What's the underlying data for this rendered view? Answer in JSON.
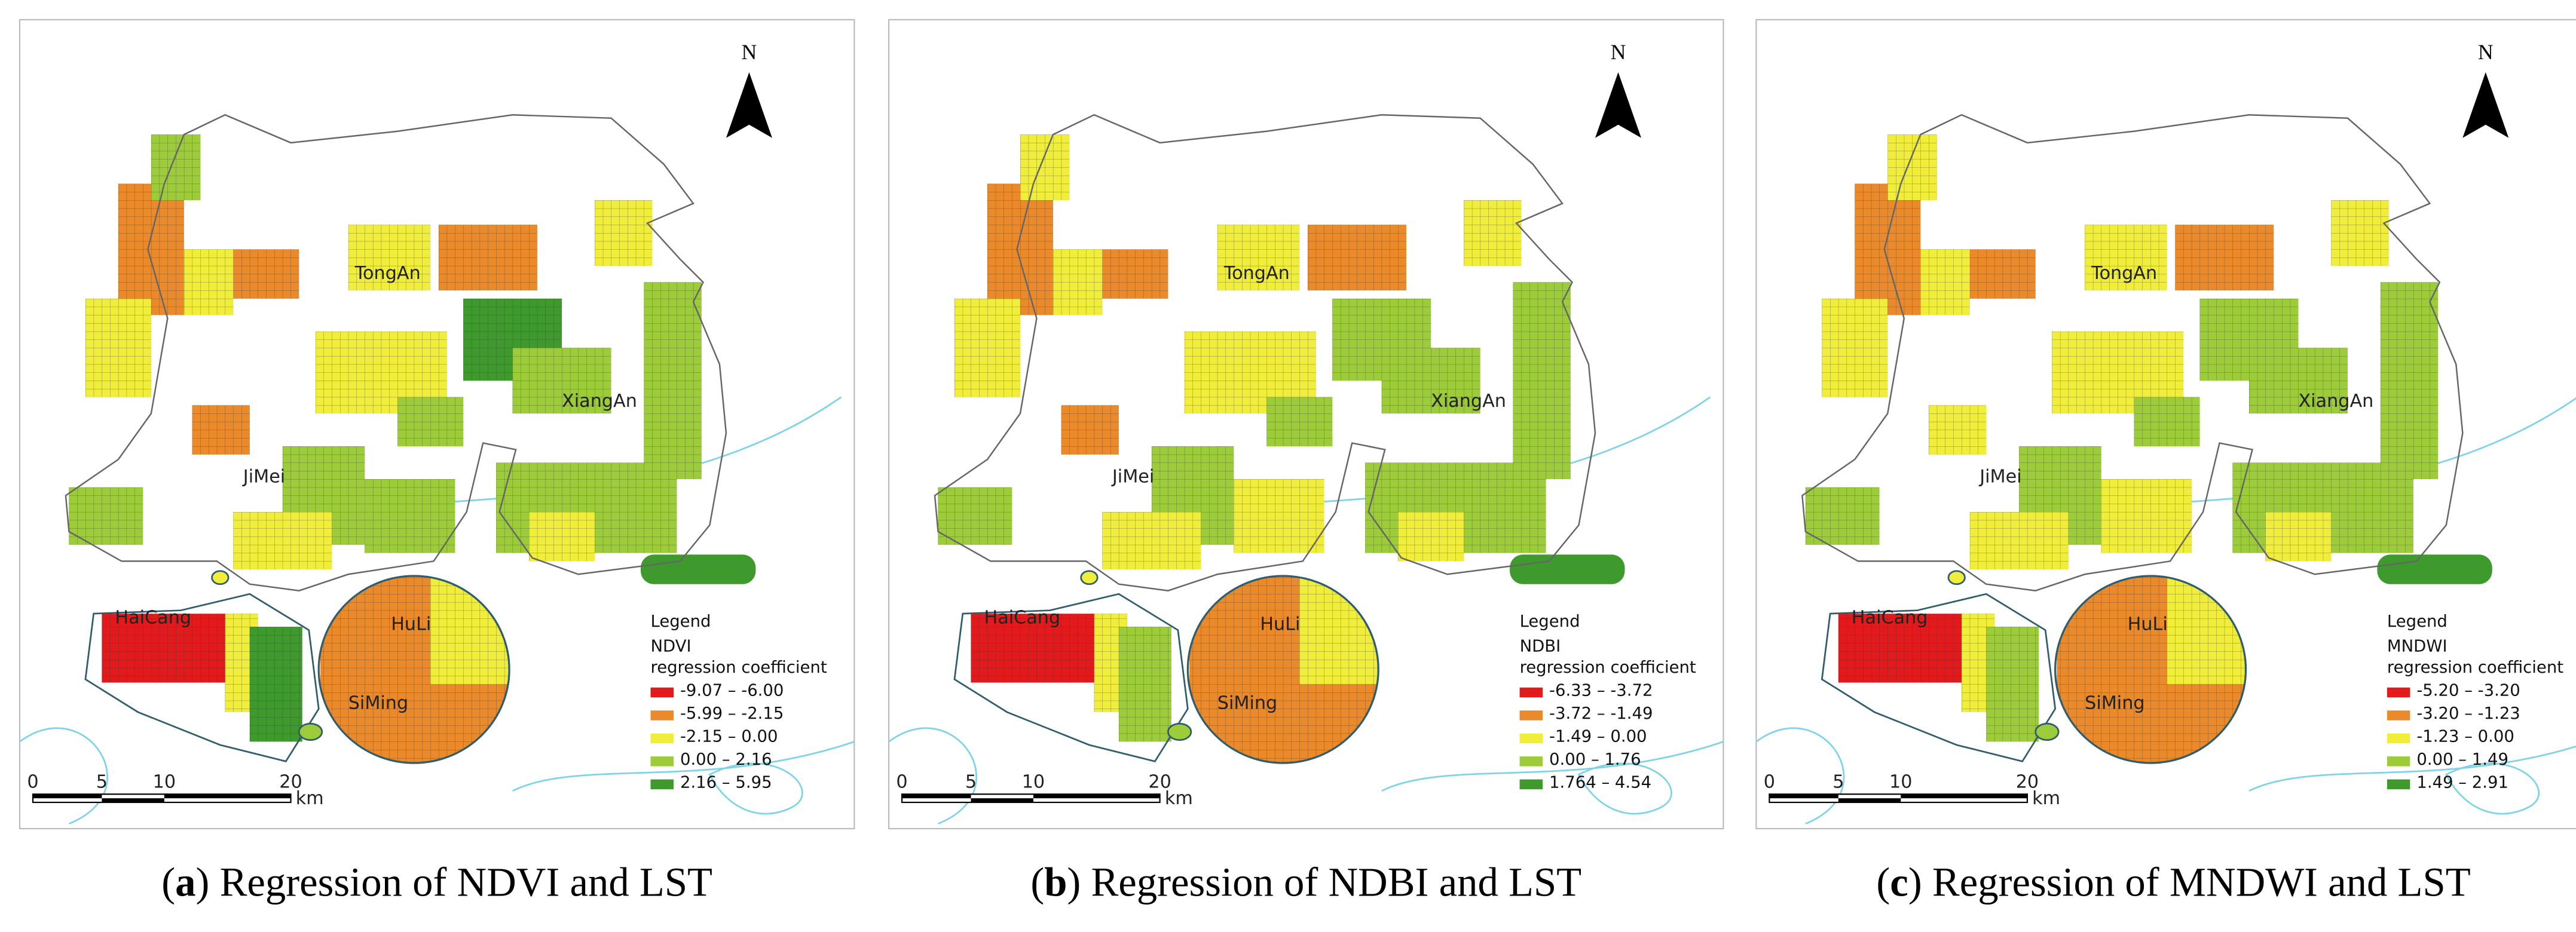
{
  "panels": [
    {
      "places": [
        "TongAn",
        "XiangAn",
        "JiMei",
        "HaiCang",
        "HuLi",
        "SiMing"
      ],
      "north": "N",
      "scale": [
        "0",
        "5",
        "10",
        "20",
        "km"
      ],
      "legend": {
        "heading": "Legend",
        "index": "NDVI",
        "subtitle": "regression coefficient",
        "classes": [
          {
            "label": "-9.07 – -6.00",
            "color": "#e31a1c"
          },
          {
            "label": "-5.99 – -2.15",
            "color": "#ea8a2b"
          },
          {
            "label": "-2.15 – 0.00",
            "color": "#f0ee3a"
          },
          {
            "label": "0.00 – 2.16",
            "color": "#9ccc3a"
          },
          {
            "label": "2.16 – 5.95",
            "color": "#3e9a2c"
          }
        ]
      },
      "caption": [
        "(",
        "a",
        ") Regression of NDVI and LST"
      ]
    },
    {
      "places": [
        "TongAn",
        "XiangAn",
        "JiMei",
        "HaiCang",
        "HuLi",
        "SiMing"
      ],
      "north": "N",
      "scale": [
        "0",
        "5",
        "10",
        "20",
        "km"
      ],
      "legend": {
        "heading": "Legend",
        "index": "NDBI",
        "subtitle": "regression coefficient",
        "classes": [
          {
            "label": "-6.33 – -3.72",
            "color": "#e31a1c"
          },
          {
            "label": "-3.72 – -1.49",
            "color": "#ea8a2b"
          },
          {
            "label": "-1.49 – 0.00",
            "color": "#f0ee3a"
          },
          {
            "label": "0.00 – 1.76",
            "color": "#9ccc3a"
          },
          {
            "label": "1.764 – 4.54",
            "color": "#3e9a2c"
          }
        ]
      },
      "caption": [
        "(",
        "b",
        ") Regression of NDBI and LST"
      ]
    },
    {
      "places": [
        "TongAn",
        "XiangAn",
        "JiMei",
        "HaiCang",
        "HuLi",
        "SiMing"
      ],
      "north": "N",
      "scale": [
        "0",
        "5",
        "10",
        "20",
        "km"
      ],
      "legend": {
        "heading": "Legend",
        "index": "MNDWI",
        "subtitle": "regression coefficient",
        "classes": [
          {
            "label": "-5.20 – -3.20",
            "color": "#e31a1c"
          },
          {
            "label": "-3.20 – -1.23",
            "color": "#ea8a2b"
          },
          {
            "label": "-1.23 – 0.00",
            "color": "#f0ee3a"
          },
          {
            "label": "0.00 – 1.49",
            "color": "#9ccc3a"
          },
          {
            "label": "1.49 – 2.91",
            "color": "#3e9a2c"
          }
        ]
      },
      "caption": [
        "(",
        "c",
        ") Regression of MNDWI and LST"
      ]
    }
  ]
}
